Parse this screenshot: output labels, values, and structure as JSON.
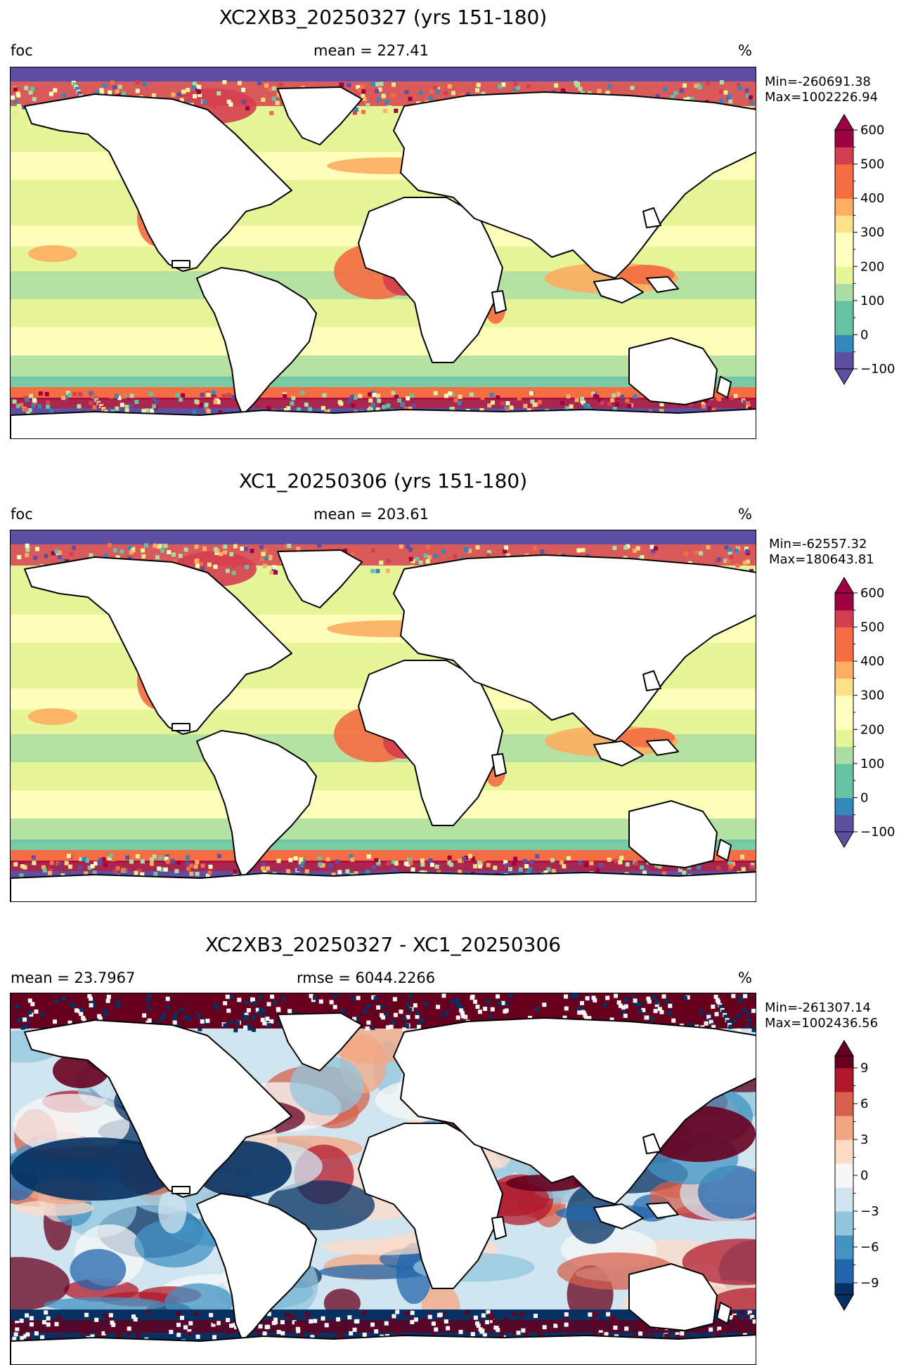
{
  "panels": [
    {
      "title": "XC2XB3_20250327 (yrs 151-180)",
      "left_label": "foc",
      "center_label": "mean = 227.41",
      "units": "%",
      "min_text": "Min=-260691.38",
      "max_text": "Max=1002226.94",
      "colorbar": {
        "ticks": [
          "600",
          "500",
          "400",
          "300",
          "200",
          "100",
          "0",
          "−100"
        ],
        "colormap": "Spectral_r",
        "range": [
          -100,
          600
        ],
        "extend": "both"
      }
    },
    {
      "title": "XC1_20250306 (yrs 151-180)",
      "left_label": "foc",
      "center_label": "mean = 203.61",
      "units": "%",
      "min_text": "Min=-62557.32",
      "max_text": "Max=180643.81",
      "colorbar": {
        "ticks": [
          "600",
          "500",
          "400",
          "300",
          "200",
          "100",
          "0",
          "−100"
        ],
        "colormap": "Spectral_r",
        "range": [
          -100,
          600
        ],
        "extend": "both"
      }
    },
    {
      "title": "XC2XB3_20250327 - XC1_20250306",
      "left_label": "mean = 23.7967",
      "center_label": "rmse = 6044.2266",
      "units": "%",
      "min_text": "Min=-261307.14",
      "max_text": "Max=1002436.56",
      "colorbar": {
        "ticks": [
          "9",
          "6",
          "3",
          "0",
          "−3",
          "−6",
          "−9"
        ],
        "colormap": "RdBu_r",
        "range": [
          -10,
          10
        ],
        "extend": "both"
      }
    }
  ],
  "chart_data": [
    {
      "type": "heatmap",
      "title": "XC2XB3_20250327 (yrs 151-180)",
      "variable": "foc",
      "units": "%",
      "mean": 227.41,
      "min": -260691.38,
      "max": 1002226.94,
      "colorbar_range": [
        -100,
        600
      ]
    },
    {
      "type": "heatmap",
      "title": "XC1_20250306 (yrs 151-180)",
      "variable": "foc",
      "units": "%",
      "mean": 203.61,
      "min": -62557.32,
      "max": 180643.81,
      "colorbar_range": [
        -100,
        600
      ]
    },
    {
      "type": "heatmap",
      "title": "XC2XB3_20250327 - XC1_20250306",
      "units": "%",
      "mean": 23.7967,
      "rmse": 6044.2266,
      "min": -261307.14,
      "max": 1002436.56,
      "colorbar_range": [
        -10,
        10
      ]
    }
  ],
  "colors": {
    "spectral": [
      "#5e4fa2",
      "#3288bd",
      "#66c2a5",
      "#abdda4",
      "#e6f598",
      "#ffffbf",
      "#fee08b",
      "#fdae61",
      "#f46d43",
      "#d53e4f",
      "#9e0142"
    ],
    "rdbu": [
      "#053061",
      "#2166ac",
      "#4393c3",
      "#92c5de",
      "#d1e5f0",
      "#f7f7f7",
      "#fddbc7",
      "#f4a582",
      "#d6604d",
      "#b2182b",
      "#67001f"
    ]
  }
}
